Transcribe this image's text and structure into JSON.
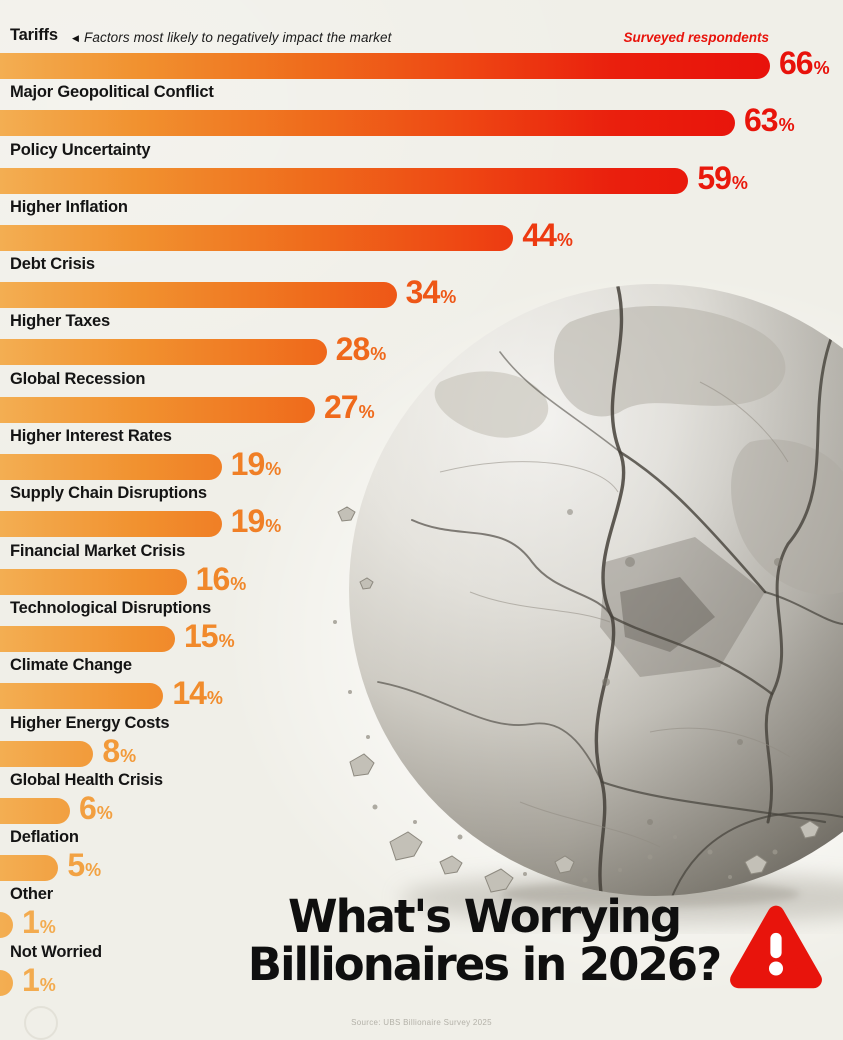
{
  "header": {
    "note": "Factors most likely to negatively impact the market",
    "right_note": "Surveyed respondents"
  },
  "chart_data": {
    "type": "bar",
    "orientation": "horizontal",
    "unit": "%",
    "title": "What's Worrying Billionaires in 2026?",
    "subtitle": "Factors most likely to negatively impact the market",
    "legend": "Surveyed respondents",
    "xlim": [
      0,
      66
    ],
    "categories": [
      "Tariffs",
      "Major Geopolitical Conflict",
      "Policy Uncertainty",
      "Higher Inflation",
      "Debt Crisis",
      "Higher Taxes",
      "Global Recession",
      "Higher Interest Rates",
      "Supply Chain Disruptions",
      "Financial Market Crisis",
      "Technological Disruptions",
      "Climate Change",
      "Higher Energy Costs",
      "Global Health Crisis",
      "Deflation",
      "Other",
      "Not Worried"
    ],
    "values": [
      66,
      63,
      59,
      44,
      34,
      28,
      27,
      19,
      19,
      16,
      15,
      14,
      8,
      6,
      5,
      1,
      1
    ]
  },
  "title": {
    "line1": "What's Worrying",
    "line2": "Billionaires in 2026?"
  },
  "footer": {
    "source": "Source: UBS Billionaire Survey 2025"
  },
  "colors": {
    "background": "#F0EFE8",
    "text": "#141414",
    "alert_red": "#E8140C",
    "gradient_stops": [
      [
        0,
        "#F3AE52"
      ],
      [
        0.18,
        "#F1912F"
      ],
      [
        0.4,
        "#EF6C1C"
      ],
      [
        0.6,
        "#EE4713"
      ],
      [
        0.8,
        "#EA1F0D"
      ],
      [
        1,
        "#E8120B"
      ]
    ]
  }
}
